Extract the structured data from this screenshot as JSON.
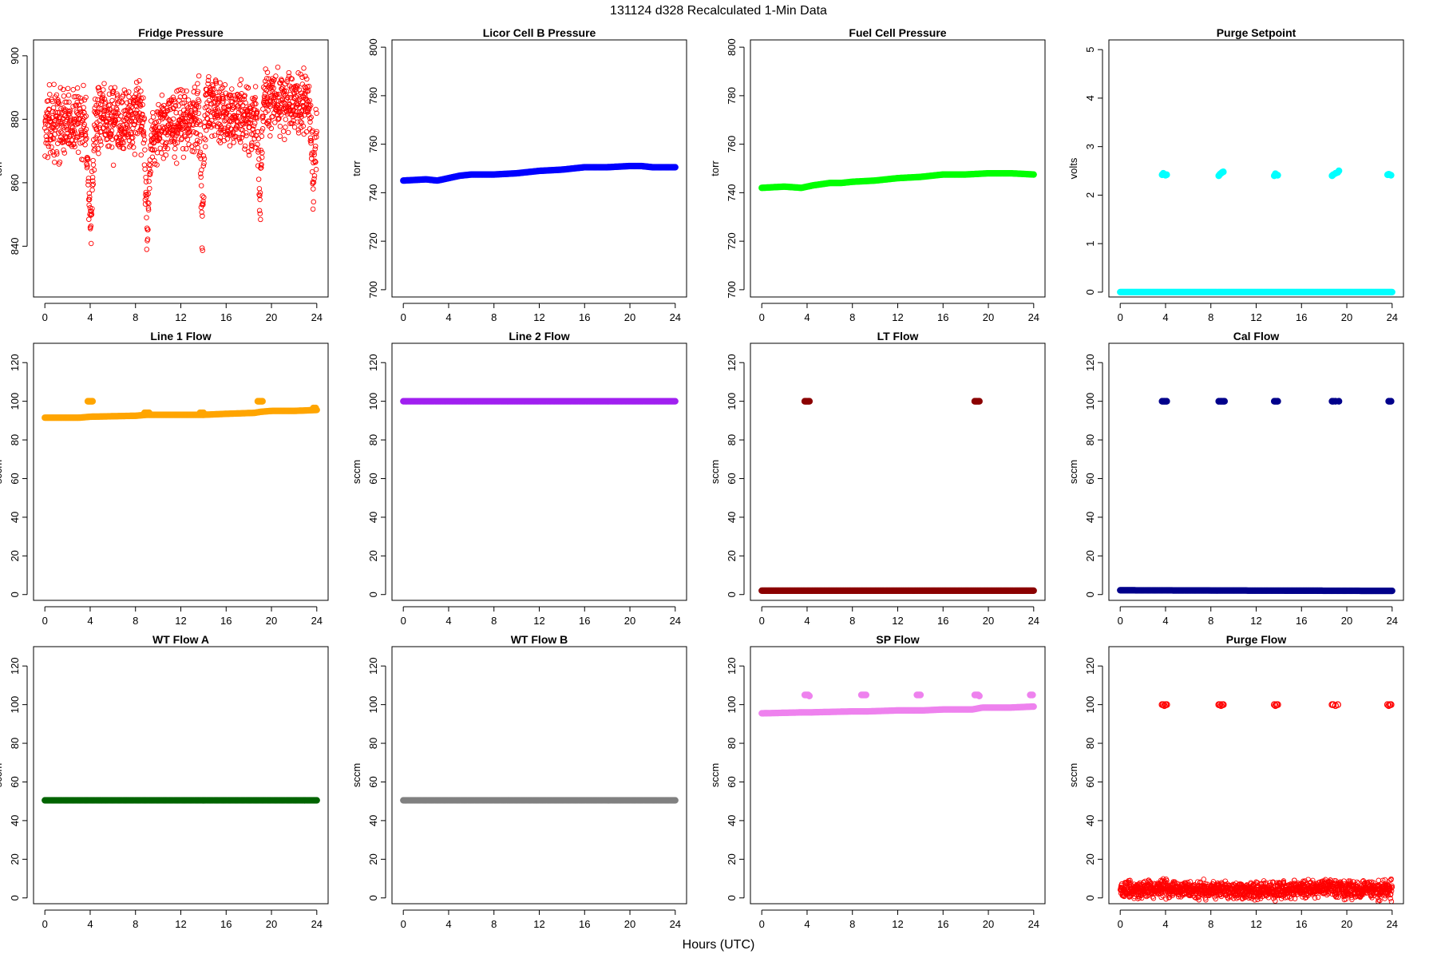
{
  "figure": {
    "title": "131124   d328   Recalculated 1-Min Data",
    "xlabel": "Hours (UTC)"
  },
  "chart_data": [
    {
      "type": "scatter",
      "title": "Fridge Pressure",
      "ylabel": "torr",
      "xlim": [
        -1,
        25
      ],
      "xticks": [
        0,
        4,
        8,
        12,
        16,
        20,
        24
      ],
      "ylim": [
        824,
        905
      ],
      "yticks": [
        840,
        860,
        880,
        900
      ],
      "color": "#ff0000",
      "marker": "open-circle",
      "style": "noisy",
      "series": [
        {
          "x": [
            0,
            3.6,
            3.9,
            4.1,
            4.4,
            8.7,
            9.0,
            9.4,
            13.6,
            13.9,
            14.2,
            18.7,
            19.0,
            19.3,
            23.4,
            23.7,
            24
          ],
          "y": [
            878,
            880,
            850,
            845,
            880,
            880,
            845,
            875,
            882,
            848,
            884,
            880,
            855,
            886,
            885,
            858,
            875
          ]
        }
      ],
      "noise": 5
    },
    {
      "type": "scatter",
      "title": "Licor Cell B Pressure",
      "ylabel": "torr",
      "xlim": [
        -1,
        25
      ],
      "xticks": [
        0,
        4,
        8,
        12,
        16,
        20,
        24
      ],
      "ylim": [
        697,
        803
      ],
      "yticks": [
        700,
        720,
        740,
        760,
        780,
        800
      ],
      "color": "#0000ff",
      "marker": "filled-circle",
      "style": "thick",
      "series": [
        {
          "x": [
            0,
            2,
            3,
            4,
            5,
            6,
            8,
            10,
            12,
            14,
            16,
            18,
            20,
            21,
            22,
            24
          ],
          "y": [
            745,
            745.5,
            745,
            746,
            747,
            747.5,
            747.5,
            748,
            749,
            749.5,
            750.5,
            750.5,
            751,
            751,
            750.5,
            750.5
          ]
        }
      ]
    },
    {
      "type": "scatter",
      "title": "Fuel Cell Pressure",
      "ylabel": "torr",
      "xlim": [
        -1,
        25
      ],
      "xticks": [
        0,
        4,
        8,
        12,
        16,
        20,
        24
      ],
      "ylim": [
        697,
        803
      ],
      "yticks": [
        700,
        720,
        740,
        760,
        780,
        800
      ],
      "color": "#00ff00",
      "marker": "filled-circle",
      "style": "thick",
      "series": [
        {
          "x": [
            0,
            2,
            3.5,
            4.5,
            6,
            7,
            8,
            10,
            12,
            14,
            16,
            18,
            20,
            22,
            24
          ],
          "y": [
            742,
            742.5,
            742,
            743,
            744,
            744,
            744.5,
            745,
            746,
            746.5,
            747.5,
            747.5,
            748,
            748,
            747.5
          ]
        }
      ]
    },
    {
      "type": "scatter",
      "title": "Purge Setpoint",
      "ylabel": "volts",
      "xlim": [
        -1,
        25
      ],
      "xticks": [
        0,
        4,
        8,
        12,
        16,
        20,
        24
      ],
      "ylim": [
        -0.1,
        5.2
      ],
      "yticks": [
        0,
        1,
        2,
        3,
        4,
        5
      ],
      "color": "#00ffff",
      "marker": "filled-circle",
      "style": "thick",
      "series": [
        {
          "x": [
            0,
            24
          ],
          "y": [
            0,
            0
          ]
        },
        {
          "x": [
            3.7,
            3.8,
            3.9,
            4.0,
            4.1
          ],
          "y": [
            2.42,
            2.45,
            2.43,
            2.41,
            2.42
          ],
          "style": "cluster"
        },
        {
          "x": [
            8.7,
            8.8,
            8.9,
            9.0,
            9.1
          ],
          "y": [
            2.4,
            2.43,
            2.45,
            2.47,
            2.48
          ],
          "style": "cluster"
        },
        {
          "x": [
            13.6,
            13.7,
            13.8,
            13.9
          ],
          "y": [
            2.4,
            2.44,
            2.42,
            2.41
          ],
          "style": "cluster"
        },
        {
          "x": [
            18.7,
            18.8,
            19.0,
            19.2,
            19.3
          ],
          "y": [
            2.4,
            2.42,
            2.45,
            2.47,
            2.5
          ],
          "style": "cluster"
        },
        {
          "x": [
            23.6,
            23.7,
            23.8,
            23.9
          ],
          "y": [
            2.42,
            2.43,
            2.42,
            2.41
          ],
          "style": "cluster"
        }
      ]
    },
    {
      "type": "scatter",
      "title": "Line 1 Flow",
      "ylabel": "sccm",
      "xlim": [
        -1,
        25
      ],
      "xticks": [
        0,
        4,
        8,
        12,
        16,
        20,
        24
      ],
      "ylim": [
        -3,
        130
      ],
      "yticks": [
        0,
        20,
        40,
        60,
        80,
        100,
        120
      ],
      "color": "#ffa500",
      "marker": "filled-circle",
      "style": "thick",
      "series": [
        {
          "x": [
            0,
            3,
            4,
            8,
            9,
            12,
            14,
            16,
            18.5,
            19,
            20,
            22,
            24
          ],
          "y": [
            91.5,
            91.5,
            92,
            92.5,
            93,
            93,
            93,
            93.5,
            94,
            94.5,
            95,
            95,
            95.5
          ]
        },
        {
          "x": [
            3.8,
            3.9,
            4.0,
            4.1,
            4.2
          ],
          "y": [
            100,
            100,
            100,
            100,
            100
          ],
          "style": "cluster"
        },
        {
          "x": [
            8.8,
            8.9,
            9.0,
            9.1,
            9.2
          ],
          "y": [
            94,
            94,
            94,
            94,
            94
          ],
          "style": "cluster"
        },
        {
          "x": [
            13.7,
            13.8,
            13.9,
            14.0
          ],
          "y": [
            94,
            94,
            94,
            94
          ],
          "style": "cluster"
        },
        {
          "x": [
            18.8,
            18.9,
            19.0,
            19.1,
            19.2
          ],
          "y": [
            100,
            100,
            100,
            100,
            100
          ],
          "style": "cluster"
        },
        {
          "x": [
            23.7,
            23.8,
            23.9
          ],
          "y": [
            96.5,
            96.5,
            96.5
          ],
          "style": "cluster"
        }
      ]
    },
    {
      "type": "scatter",
      "title": "Line 2 Flow",
      "ylabel": "sccm",
      "xlim": [
        -1,
        25
      ],
      "xticks": [
        0,
        4,
        8,
        12,
        16,
        20,
        24
      ],
      "ylim": [
        -3,
        130
      ],
      "yticks": [
        0,
        20,
        40,
        60,
        80,
        100,
        120
      ],
      "color": "#a020f0",
      "marker": "filled-circle",
      "style": "thick",
      "series": [
        {
          "x": [
            0,
            24
          ],
          "y": [
            100,
            100
          ]
        }
      ]
    },
    {
      "type": "scatter",
      "title": "LT Flow",
      "ylabel": "sccm",
      "xlim": [
        -1,
        25
      ],
      "xticks": [
        0,
        4,
        8,
        12,
        16,
        20,
        24
      ],
      "ylim": [
        -3,
        130
      ],
      "yticks": [
        0,
        20,
        40,
        60,
        80,
        100,
        120
      ],
      "color": "#8b0000",
      "marker": "filled-circle",
      "style": "thick",
      "series": [
        {
          "x": [
            0,
            24
          ],
          "y": [
            2,
            2
          ]
        },
        {
          "x": [
            3.8,
            3.9,
            4.0,
            4.1,
            4.2
          ],
          "y": [
            100,
            100,
            100,
            100,
            100
          ],
          "style": "cluster"
        },
        {
          "x": [
            18.8,
            18.9,
            19.0,
            19.1,
            19.2
          ],
          "y": [
            100,
            100,
            100,
            100,
            100
          ],
          "style": "cluster"
        }
      ]
    },
    {
      "type": "scatter",
      "title": "Cal Flow",
      "ylabel": "sccm",
      "xlim": [
        -1,
        25
      ],
      "xticks": [
        0,
        4,
        8,
        12,
        16,
        20,
        24
      ],
      "ylim": [
        -3,
        130
      ],
      "yticks": [
        0,
        20,
        40,
        60,
        80,
        100,
        120
      ],
      "color": "#00008b",
      "marker": "filled-circle",
      "style": "thick",
      "series": [
        {
          "x": [
            0,
            8,
            16,
            24
          ],
          "y": [
            2.2,
            2.1,
            2.0,
            1.9
          ]
        },
        {
          "x": [
            3.7,
            3.8,
            3.9,
            4.0,
            4.1
          ],
          "y": [
            100,
            100,
            100,
            100,
            100
          ],
          "style": "cluster"
        },
        {
          "x": [
            8.7,
            8.8,
            8.9,
            9.0,
            9.1,
            9.2
          ],
          "y": [
            100,
            100,
            100,
            100,
            100,
            100
          ],
          "style": "cluster"
        },
        {
          "x": [
            13.6,
            13.7,
            13.8,
            13.9
          ],
          "y": [
            100,
            100,
            100,
            100
          ],
          "style": "cluster"
        },
        {
          "x": [
            18.7,
            18.8,
            19.0,
            19.3
          ],
          "y": [
            100,
            100,
            100,
            100
          ],
          "style": "cluster"
        },
        {
          "x": [
            23.7,
            23.8,
            23.9
          ],
          "y": [
            100,
            100,
            100
          ],
          "style": "cluster"
        }
      ]
    },
    {
      "type": "scatter",
      "title": "WT Flow A",
      "ylabel": "sccm",
      "xlim": [
        -1,
        25
      ],
      "xticks": [
        0,
        4,
        8,
        12,
        16,
        20,
        24
      ],
      "ylim": [
        -3,
        130
      ],
      "yticks": [
        0,
        20,
        40,
        60,
        80,
        100,
        120
      ],
      "color": "#006400",
      "marker": "filled-circle",
      "style": "thick",
      "series": [
        {
          "x": [
            0,
            24
          ],
          "y": [
            50.5,
            50.5
          ]
        }
      ]
    },
    {
      "type": "scatter",
      "title": "WT Flow B",
      "ylabel": "sccm",
      "xlim": [
        -1,
        25
      ],
      "xticks": [
        0,
        4,
        8,
        12,
        16,
        20,
        24
      ],
      "ylim": [
        -3,
        130
      ],
      "yticks": [
        0,
        20,
        40,
        60,
        80,
        100,
        120
      ],
      "color": "#808080",
      "marker": "filled-circle",
      "style": "thick",
      "series": [
        {
          "x": [
            0,
            24
          ],
          "y": [
            50.5,
            50.5
          ]
        }
      ]
    },
    {
      "type": "scatter",
      "title": "SP Flow",
      "ylabel": "sccm",
      "xlim": [
        -1,
        25
      ],
      "xticks": [
        0,
        4,
        8,
        12,
        16,
        20,
        24
      ],
      "ylim": [
        -3,
        130
      ],
      "yticks": [
        0,
        20,
        40,
        60,
        80,
        100,
        120
      ],
      "color": "#ee82ee",
      "marker": "filled-circle",
      "style": "thick",
      "series": [
        {
          "x": [
            0,
            3.7,
            4.3,
            8,
            8.7,
            9.3,
            12,
            13.6,
            14.2,
            16,
            18.6,
            19.5,
            22,
            24
          ],
          "y": [
            95.5,
            96,
            96,
            96.5,
            96.5,
            96.5,
            97,
            97,
            97,
            97.5,
            97.5,
            98.5,
            98.5,
            99
          ]
        },
        {
          "x": [
            3.8,
            3.9,
            4.0,
            4.1,
            4.2
          ],
          "y": [
            105,
            105,
            105,
            105,
            104.5
          ],
          "style": "cluster"
        },
        {
          "x": [
            8.8,
            8.9,
            9.0,
            9.1,
            9.2
          ],
          "y": [
            105,
            105,
            105,
            105,
            105
          ],
          "style": "cluster"
        },
        {
          "x": [
            13.7,
            13.8,
            13.9,
            14.0
          ],
          "y": [
            105,
            105,
            105,
            105
          ],
          "style": "cluster"
        },
        {
          "x": [
            18.8,
            18.9,
            19.0,
            19.1,
            19.2
          ],
          "y": [
            105,
            105,
            105,
            105,
            104.5
          ],
          "style": "cluster"
        },
        {
          "x": [
            23.7,
            23.8,
            23.9
          ],
          "y": [
            105,
            105,
            105
          ],
          "style": "cluster"
        }
      ]
    },
    {
      "type": "scatter",
      "title": "Purge Flow",
      "ylabel": "sccm",
      "xlim": [
        -1,
        25
      ],
      "xticks": [
        0,
        4,
        8,
        12,
        16,
        20,
        24
      ],
      "ylim": [
        -3,
        130
      ],
      "yticks": [
        0,
        20,
        40,
        60,
        80,
        100,
        120
      ],
      "color": "#ff0000",
      "marker": "open-circle",
      "style": "noisy",
      "series": [
        {
          "x": [
            0,
            4,
            8,
            12,
            16,
            19,
            20,
            24
          ],
          "y": [
            4,
            5,
            4,
            4,
            4.5,
            5,
            4.5,
            4
          ]
        },
        {
          "x": [
            3.7,
            3.8,
            3.9,
            4.0,
            4.1
          ],
          "y": [
            100,
            100,
            99.5,
            100,
            100
          ],
          "style": "cluster"
        },
        {
          "x": [
            8.7,
            8.8,
            8.9,
            9.0,
            9.1
          ],
          "y": [
            100,
            100,
            99.5,
            100,
            100
          ],
          "style": "cluster"
        },
        {
          "x": [
            13.6,
            13.7,
            13.8,
            13.9
          ],
          "y": [
            100,
            99.5,
            100,
            100
          ],
          "style": "cluster"
        },
        {
          "x": [
            18.7,
            18.8,
            19.0,
            19.2
          ],
          "y": [
            100,
            100,
            99.5,
            100
          ],
          "style": "cluster"
        },
        {
          "x": [
            23.6,
            23.7,
            23.8,
            23.9
          ],
          "y": [
            100,
            99.5,
            100,
            100
          ],
          "style": "cluster"
        }
      ],
      "noise": 2.2
    }
  ]
}
